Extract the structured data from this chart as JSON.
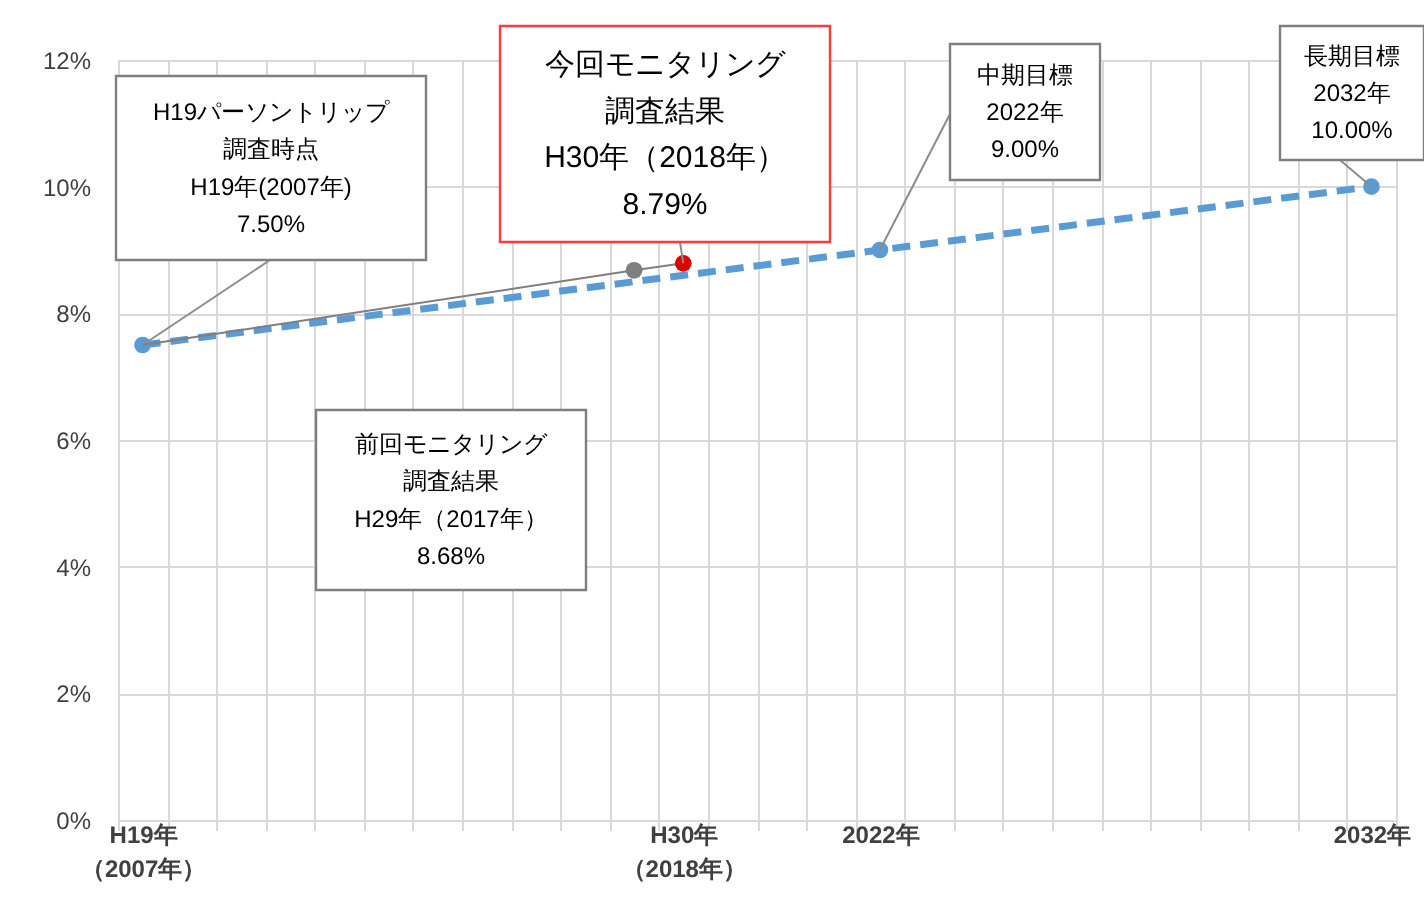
{
  "chart_data": {
    "type": "line",
    "categories": [
      "H19年（2007年）",
      null,
      null,
      null,
      null,
      null,
      null,
      null,
      null,
      null,
      null,
      "H30年（2018年）",
      null,
      null,
      null,
      "2022年",
      null,
      null,
      null,
      null,
      null,
      null,
      null,
      null,
      null,
      "2032年"
    ],
    "ylim": [
      0,
      12
    ],
    "yticks": [
      {
        "value": 0,
        "label": "0%"
      },
      {
        "value": 2,
        "label": "2%"
      },
      {
        "value": 4,
        "label": "4%"
      },
      {
        "value": 6,
        "label": "6%"
      },
      {
        "value": 8,
        "label": "8%"
      },
      {
        "value": 10,
        "label": "10%"
      },
      {
        "value": 12,
        "label": "12%"
      }
    ],
    "grid": true,
    "series": [
      {
        "color": "#5b9bd5",
        "values": [
          7.5,
          null,
          null,
          null,
          null,
          null,
          null,
          null,
          null,
          null,
          null,
          null,
          null,
          null,
          null,
          9.0,
          null,
          null,
          null,
          null,
          null,
          null,
          null,
          null,
          null,
          10.0
        ],
        "line_style": "dashed",
        "marker": "circle"
      },
      {
        "color": "#7f7f7f",
        "values": [
          7.5,
          null,
          null,
          null,
          null,
          null,
          null,
          null,
          null,
          null,
          8.68,
          8.79,
          null,
          null,
          null,
          null,
          null,
          null,
          null,
          null,
          null,
          null,
          null,
          null,
          null,
          null
        ],
        "line_style": "solid",
        "marker": "none"
      },
      {
        "type": "scatter",
        "color": "#7f7f7f",
        "values": [
          null,
          null,
          null,
          null,
          null,
          null,
          null,
          null,
          null,
          null,
          8.68,
          null,
          null,
          null,
          null,
          null,
          null,
          null,
          null,
          null,
          null,
          null,
          null,
          null,
          null,
          null
        ],
        "marker": "circle"
      },
      {
        "type": "scatter",
        "color": "#e00000",
        "values": [
          null,
          null,
          null,
          null,
          null,
          null,
          null,
          null,
          null,
          null,
          null,
          8.79,
          null,
          null,
          null,
          null,
          null,
          null,
          null,
          null,
          null,
          null,
          null,
          null,
          null,
          null
        ],
        "marker": "circle"
      }
    ],
    "annotations": [
      {
        "text": "H19パーソントリップ調査時点\nH19年(2007年)\n7.50%",
        "x": "H19年（2007年）",
        "y": 7.5
      },
      "前回モニタリング調査結果\nH29年（2017年）\n8.68%",
      {
        "text": "今回モニタリング調査結果\nH30年（2018年）\n8.79%",
        "x": "H30年（2018年）",
        "y": 8.79
      },
      {
        "text": "中期目標\n2022年\n9.00%",
        "x": "2022年",
        "y": 9.0
      },
      {
        "text": "長期目標\n2032年\n10.00%",
        "x": "2032年",
        "y": 10.0
      }
    ]
  }
}
